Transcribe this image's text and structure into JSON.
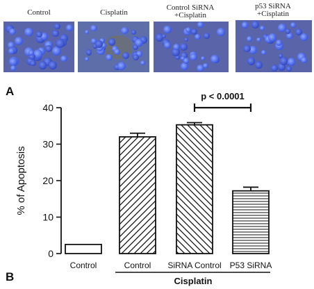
{
  "micrographs": [
    {
      "label": "Control"
    },
    {
      "label": "Cisplatin"
    },
    {
      "label_lines": [
        "Control SiRNA",
        "+Cisplatin"
      ]
    },
    {
      "label_lines": [
        "p53 SiRNA",
        "+Cisplatin"
      ]
    }
  ],
  "panel_labels": {
    "a": "A",
    "b": "B"
  },
  "chart_data": {
    "type": "bar",
    "categories": [
      "Control",
      "Control",
      "SiRNA Control",
      "P53 SiRNA"
    ],
    "values": [
      2.5,
      32,
      35.3,
      17.2
    ],
    "errors": [
      0,
      1.0,
      0.6,
      1.0
    ],
    "fills": [
      "none",
      "diag-left",
      "diag-right",
      "horizontal"
    ],
    "ylabel": "% of Apoptosis",
    "ylim": [
      0,
      40
    ],
    "yticks": [
      0,
      10,
      20,
      30,
      40
    ],
    "group_label": "Cisplatin",
    "significance": {
      "text": "p < 0.0001",
      "between": [
        2,
        3
      ]
    }
  }
}
